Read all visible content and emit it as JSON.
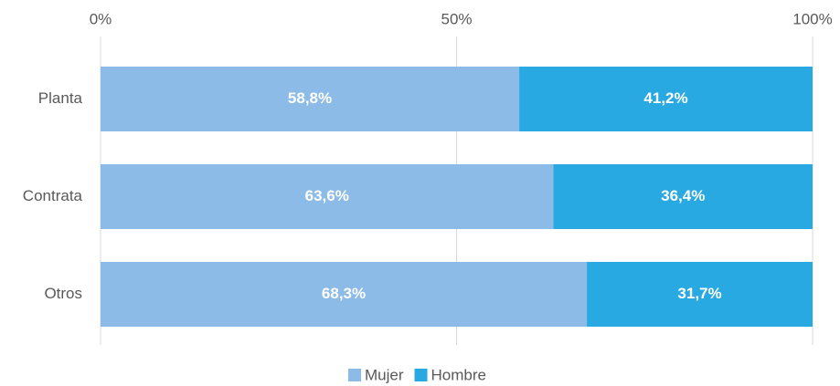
{
  "chart_data": {
    "type": "bar",
    "orientation": "horizontal",
    "stacked": true,
    "categories": [
      "Planta",
      "Contrata",
      "Otros"
    ],
    "series": [
      {
        "name": "Mujer",
        "color": "#8bbbe6",
        "values": [
          58.8,
          63.6,
          68.3
        ],
        "value_labels": [
          "58,8%",
          "63,6%",
          "68,3%"
        ]
      },
      {
        "name": "Hombre",
        "color": "#29a9e1",
        "values": [
          41.2,
          36.4,
          31.7
        ],
        "value_labels": [
          "41,2%",
          "36,4%",
          "31,7%"
        ]
      }
    ],
    "xlim": [
      0,
      100
    ],
    "xticks": [
      {
        "value": 0,
        "label": "0%"
      },
      {
        "value": 50,
        "label": "50%"
      },
      {
        "value": 100,
        "label": "100%"
      }
    ],
    "grid": true,
    "legend": "bottom"
  }
}
